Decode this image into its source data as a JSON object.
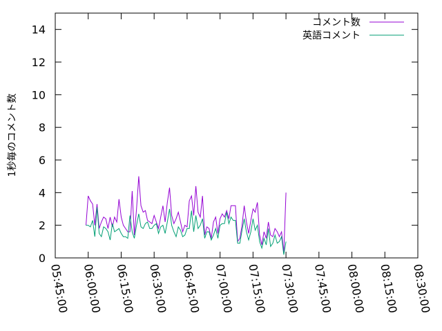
{
  "chart_data": {
    "type": "line",
    "title": "",
    "xlabel": "",
    "ylabel": "1秒毎のコメント数",
    "x_axis": {
      "type": "time",
      "range": [
        "05:45:00",
        "08:30:00"
      ],
      "tick_labels": [
        "05:45:00",
        "06:00:00",
        "06:15:00",
        "06:30:00",
        "06:45:00",
        "07:00:00",
        "07:15:00",
        "07:30:00",
        "07:45:00",
        "08:00:00",
        "08:15:00",
        "08:30:00"
      ]
    },
    "y_axis": {
      "range": [
        0,
        15
      ],
      "tick_labels": [
        "0",
        "2",
        "4",
        "6",
        "8",
        "10",
        "12",
        "14"
      ]
    },
    "grid": false,
    "legend_position": "top-right",
    "series": [
      {
        "name": "コメント数",
        "color": "#9400d3",
        "points": [
          [
            "05:59:00",
            2.0
          ],
          [
            "06:00:00",
            3.8
          ],
          [
            "06:01:00",
            3.5
          ],
          [
            "06:02:00",
            3.3
          ],
          [
            "06:03:00",
            2.0
          ],
          [
            "06:04:00",
            3.3
          ],
          [
            "06:05:00",
            1.8
          ],
          [
            "06:06:00",
            2.2
          ],
          [
            "06:07:00",
            2.5
          ],
          [
            "06:08:00",
            2.4
          ],
          [
            "06:09:00",
            1.8
          ],
          [
            "06:10:00",
            2.5
          ],
          [
            "06:11:00",
            1.9
          ],
          [
            "06:12:00",
            2.5
          ],
          [
            "06:13:00",
            2.2
          ],
          [
            "06:14:00",
            3.6
          ],
          [
            "06:15:00",
            2.5
          ],
          [
            "06:16:00",
            2.0
          ],
          [
            "06:17:00",
            1.8
          ],
          [
            "06:18:00",
            1.6
          ],
          [
            "06:19:00",
            1.6
          ],
          [
            "06:20:00",
            4.1
          ],
          [
            "06:21:00",
            1.4
          ],
          [
            "06:22:00",
            3.0
          ],
          [
            "06:23:00",
            5.0
          ],
          [
            "06:24:00",
            3.2
          ],
          [
            "06:25:00",
            2.8
          ],
          [
            "06:26:00",
            2.9
          ],
          [
            "06:27:00",
            2.3
          ],
          [
            "06:28:00",
            2.2
          ],
          [
            "06:29:00",
            2.1
          ],
          [
            "06:30:00",
            2.6
          ],
          [
            "06:31:00",
            2.2
          ],
          [
            "06:32:00",
            1.8
          ],
          [
            "06:33:00",
            2.5
          ],
          [
            "06:34:00",
            3.2
          ],
          [
            "06:35:00",
            2.2
          ],
          [
            "06:36:00",
            3.4
          ],
          [
            "06:37:00",
            4.3
          ],
          [
            "06:38:00",
            2.6
          ],
          [
            "06:39:00",
            2.1
          ],
          [
            "06:40:00",
            2.4
          ],
          [
            "06:41:00",
            2.8
          ],
          [
            "06:42:00",
            2.2
          ],
          [
            "06:43:00",
            1.6
          ],
          [
            "06:44:00",
            2.0
          ],
          [
            "06:45:00",
            1.9
          ],
          [
            "06:46:00",
            3.5
          ],
          [
            "06:47:00",
            3.8
          ],
          [
            "06:48:00",
            2.6
          ],
          [
            "06:49:00",
            4.4
          ],
          [
            "06:50:00",
            2.8
          ],
          [
            "06:51:00",
            2.5
          ],
          [
            "06:52:00",
            3.8
          ],
          [
            "06:53:00",
            1.4
          ],
          [
            "06:54:00",
            1.9
          ],
          [
            "06:55:00",
            1.8
          ],
          [
            "06:56:00",
            1.2
          ],
          [
            "06:57:00",
            2.2
          ],
          [
            "06:58:00",
            2.5
          ],
          [
            "06:59:00",
            1.5
          ],
          [
            "07:00:00",
            2.4
          ],
          [
            "07:01:00",
            2.7
          ],
          [
            "07:02:00",
            2.5
          ],
          [
            "07:03:00",
            2.9
          ],
          [
            "07:04:00",
            2.4
          ],
          [
            "07:05:00",
            3.2
          ],
          [
            "07:06:00",
            3.2
          ],
          [
            "07:07:00",
            3.2
          ],
          [
            "07:08:00",
            1.0
          ],
          [
            "07:09:00",
            1.2
          ],
          [
            "07:10:00",
            2.0
          ],
          [
            "07:11:00",
            3.2
          ],
          [
            "07:12:00",
            2.2
          ],
          [
            "07:13:00",
            1.5
          ],
          [
            "07:14:00",
            2.3
          ],
          [
            "07:15:00",
            3.0
          ],
          [
            "07:16:00",
            2.8
          ],
          [
            "07:17:00",
            3.4
          ],
          [
            "07:18:00",
            1.4
          ],
          [
            "07:19:00",
            0.8
          ],
          [
            "07:20:00",
            1.6
          ],
          [
            "07:21:00",
            1.2
          ],
          [
            "07:22:00",
            2.2
          ],
          [
            "07:23:00",
            1.4
          ],
          [
            "07:24:00",
            1.3
          ],
          [
            "07:25:00",
            1.8
          ],
          [
            "07:26:00",
            1.6
          ],
          [
            "07:27:00",
            1.3
          ],
          [
            "07:28:00",
            1.6
          ],
          [
            "07:29:00",
            0.3
          ],
          [
            "07:30:00",
            4.0
          ]
        ]
      },
      {
        "name": "英語コメント",
        "color": "#009e73",
        "points": [
          [
            "05:59:00",
            2.0
          ],
          [
            "06:00:00",
            2.0
          ],
          [
            "06:01:00",
            1.9
          ],
          [
            "06:02:00",
            2.3
          ],
          [
            "06:03:00",
            1.3
          ],
          [
            "06:04:00",
            3.1
          ],
          [
            "06:05:00",
            1.5
          ],
          [
            "06:06:00",
            1.3
          ],
          [
            "06:07:00",
            1.9
          ],
          [
            "06:08:00",
            1.8
          ],
          [
            "06:09:00",
            1.6
          ],
          [
            "06:10:00",
            1.1
          ],
          [
            "06:11:00",
            2.1
          ],
          [
            "06:12:00",
            1.6
          ],
          [
            "06:13:00",
            1.7
          ],
          [
            "06:14:00",
            1.8
          ],
          [
            "06:15:00",
            1.5
          ],
          [
            "06:16:00",
            1.3
          ],
          [
            "06:17:00",
            1.3
          ],
          [
            "06:18:00",
            1.2
          ],
          [
            "06:19:00",
            2.6
          ],
          [
            "06:20:00",
            1.6
          ],
          [
            "06:21:00",
            1.2
          ],
          [
            "06:22:00",
            2.0
          ],
          [
            "06:23:00",
            2.7
          ],
          [
            "06:24:00",
            1.9
          ],
          [
            "06:25:00",
            1.8
          ],
          [
            "06:26:00",
            2.1
          ],
          [
            "06:27:00",
            2.2
          ],
          [
            "06:28:00",
            1.8
          ],
          [
            "06:29:00",
            1.8
          ],
          [
            "06:30:00",
            2.0
          ],
          [
            "06:31:00",
            2.1
          ],
          [
            "06:32:00",
            1.5
          ],
          [
            "06:33:00",
            1.9
          ],
          [
            "06:34:00",
            2.0
          ],
          [
            "06:35:00",
            1.5
          ],
          [
            "06:36:00",
            2.2
          ],
          [
            "06:37:00",
            3.0
          ],
          [
            "06:38:00",
            2.0
          ],
          [
            "06:39:00",
            1.6
          ],
          [
            "06:40:00",
            1.3
          ],
          [
            "06:41:00",
            1.9
          ],
          [
            "06:42:00",
            1.7
          ],
          [
            "06:43:00",
            1.3
          ],
          [
            "06:44:00",
            1.4
          ],
          [
            "06:45:00",
            1.8
          ],
          [
            "06:46:00",
            1.8
          ],
          [
            "06:47:00",
            2.9
          ],
          [
            "06:48:00",
            1.6
          ],
          [
            "06:49:00",
            2.6
          ],
          [
            "06:50:00",
            1.8
          ],
          [
            "06:51:00",
            2.0
          ],
          [
            "06:52:00",
            2.4
          ],
          [
            "06:53:00",
            1.2
          ],
          [
            "06:54:00",
            1.6
          ],
          [
            "06:55:00",
            1.6
          ],
          [
            "06:56:00",
            1.1
          ],
          [
            "06:57:00",
            1.4
          ],
          [
            "06:58:00",
            1.8
          ],
          [
            "06:59:00",
            1.2
          ],
          [
            "07:00:00",
            2.0
          ],
          [
            "07:01:00",
            2.1
          ],
          [
            "07:02:00",
            2.1
          ],
          [
            "07:03:00",
            2.8
          ],
          [
            "07:04:00",
            2.1
          ],
          [
            "07:05:00",
            2.5
          ],
          [
            "07:06:00",
            2.3
          ],
          [
            "07:07:00",
            2.3
          ],
          [
            "07:08:00",
            0.9
          ],
          [
            "07:09:00",
            0.9
          ],
          [
            "07:10:00",
            1.7
          ],
          [
            "07:11:00",
            2.4
          ],
          [
            "07:12:00",
            1.6
          ],
          [
            "07:13:00",
            1.1
          ],
          [
            "07:14:00",
            1.6
          ],
          [
            "07:15:00",
            2.4
          ],
          [
            "07:16:00",
            1.7
          ],
          [
            "07:17:00",
            2.0
          ],
          [
            "07:18:00",
            1.0
          ],
          [
            "07:19:00",
            0.6
          ],
          [
            "07:20:00",
            1.2
          ],
          [
            "07:21:00",
            0.8
          ],
          [
            "07:22:00",
            1.8
          ],
          [
            "07:23:00",
            0.7
          ],
          [
            "07:24:00",
            0.9
          ],
          [
            "07:25:00",
            1.4
          ],
          [
            "07:26:00",
            0.9
          ],
          [
            "07:27:00",
            1.0
          ],
          [
            "07:28:00",
            1.3
          ],
          [
            "07:29:00",
            0.2
          ],
          [
            "07:30:00",
            1.0
          ]
        ]
      }
    ]
  }
}
